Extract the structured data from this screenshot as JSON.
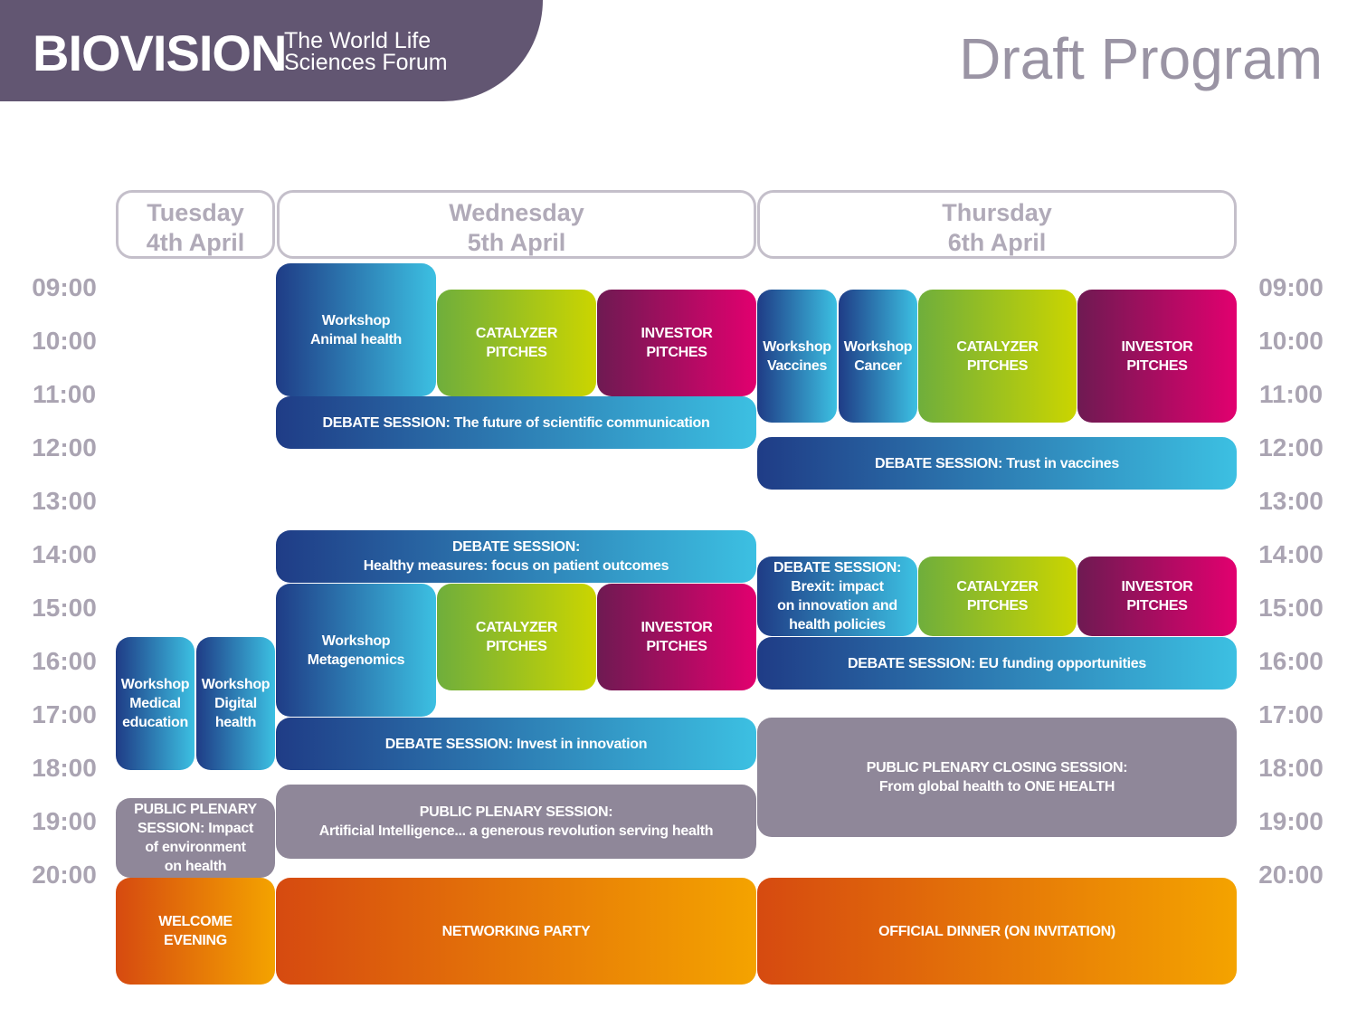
{
  "header": {
    "brand": "BIOVISION",
    "tagline": [
      "The World Life",
      "Sciences Forum"
    ],
    "title": "Draft Program"
  },
  "days": [
    {
      "name": "Tuesday",
      "date": "4th April"
    },
    {
      "name": "Wednesday",
      "date": "5th April"
    },
    {
      "name": "Thursday",
      "date": "6th April"
    }
  ],
  "times": [
    "09:00",
    "10:00",
    "11:00",
    "12:00",
    "13:00",
    "14:00",
    "15:00",
    "16:00",
    "17:00",
    "18:00",
    "19:00",
    "20:00"
  ],
  "sessions": [
    {
      "lines": [
        "Workshop",
        "Animal health"
      ]
    },
    {
      "lines": [
        "CATALYZER",
        "PITCHES"
      ]
    },
    {
      "lines": [
        "INVESTOR",
        "PITCHES"
      ]
    },
    {
      "lines": [
        "DEBATE SESSION: The future of scientific communication"
      ]
    },
    {
      "lines": [
        "DEBATE SESSION:",
        "Healthy measures: focus on patient outcomes"
      ]
    },
    {
      "lines": [
        "Workshop",
        "Metagenomics"
      ]
    },
    {
      "lines": [
        "CATALYZER",
        "PITCHES"
      ]
    },
    {
      "lines": [
        "INVESTOR",
        "PITCHES"
      ]
    },
    {
      "lines": [
        "DEBATE SESSION: Invest in innovation"
      ]
    },
    {
      "lines": [
        "PUBLIC PLENARY SESSION:",
        "Artificial Intelligence... a generous revolution serving health"
      ]
    },
    {
      "lines": [
        "NETWORKING PARTY"
      ]
    },
    {
      "lines": [
        "Workshop",
        "Medical",
        "education"
      ]
    },
    {
      "lines": [
        "Workshop",
        "Digital",
        "health"
      ]
    },
    {
      "lines": [
        "PUBLIC PLENARY",
        "SESSION: Impact",
        "of environment",
        "on health"
      ]
    },
    {
      "lines": [
        "WELCOME",
        "EVENING"
      ]
    },
    {
      "lines": [
        "Workshop",
        "Vaccines"
      ]
    },
    {
      "lines": [
        "Workshop",
        "Cancer"
      ]
    },
    {
      "lines": [
        "CATALYZER",
        "PITCHES"
      ]
    },
    {
      "lines": [
        "INVESTOR",
        "PITCHES"
      ]
    },
    {
      "lines": [
        "DEBATE SESSION: Trust in vaccines"
      ]
    },
    {
      "lines": [
        "DEBATE SESSION:",
        "Brexit: impact",
        "on innovation and",
        "health policies"
      ]
    },
    {
      "lines": [
        "CATALYZER",
        "PITCHES"
      ]
    },
    {
      "lines": [
        "INVESTOR",
        "PITCHES"
      ]
    },
    {
      "lines": [
        "DEBATE SESSION: EU funding opportunities"
      ]
    },
    {
      "lines": [
        "PUBLIC PLENARY CLOSING SESSION:",
        "From global health to ONE HEALTH"
      ]
    },
    {
      "lines": [
        "OFFICIAL DINNER (ON INVITATION)"
      ]
    }
  ]
}
